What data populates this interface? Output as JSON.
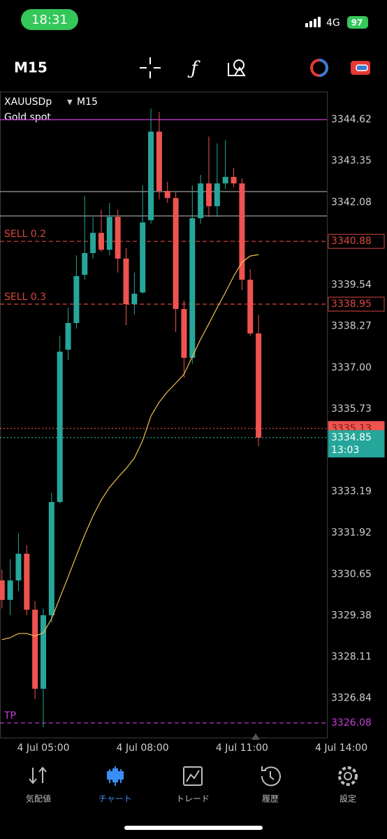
{
  "status_bar": {
    "time": "18:31",
    "network": "4G",
    "battery": "97"
  },
  "toolbar": {
    "timeframe": "M15"
  },
  "chart_data": {
    "type": "candlestick",
    "symbol": "XAUUSDp",
    "timeframe": "M15",
    "description": "Gold spot",
    "categories": [
      null,
      null,
      null,
      null,
      null,
      "4 Jul 05:00",
      null,
      null,
      null,
      null,
      null,
      null,
      null,
      null,
      null,
      null,
      null,
      "4 Jul 08:00",
      null,
      null,
      null,
      null,
      null,
      null,
      null,
      null,
      null,
      null,
      null,
      "4 Jul 11:00",
      null,
      null,
      null,
      null,
      null,
      null,
      null,
      null,
      null,
      null,
      null,
      "4 Jul 14:00"
    ],
    "open": [
      3330.46,
      3329.86,
      3330.46,
      3331.28,
      3329.56,
      3327.13,
      3329.39,
      3332.87,
      3337.55,
      3338.37,
      3339.85,
      3340.52,
      3341.14,
      3340.62,
      3341.63,
      3340.35,
      3338.95,
      3339.31,
      3341.53,
      3344.25,
      3342.43,
      3342.21,
      3338.8,
      3337.3,
      3341.59,
      3342.66,
      3341.96,
      3342.66,
      3342.86,
      3342.66,
      3339.7,
      3338.05,
      null,
      null,
      null,
      null,
      null,
      null,
      null,
      null,
      null,
      null
    ],
    "high": [
      3330.79,
      3331.11,
      3331.9,
      3331.54,
      3329.82,
      3329.6,
      3333.15,
      3337.98,
      3338.84,
      3340.45,
      3342.28,
      3341.63,
      3341.85,
      3342.06,
      3341.85,
      3340.67,
      3339.92,
      3342.6,
      3344.96,
      3344.86,
      3342.71,
      3342.39,
      3339.06,
      3342.6,
      3342.92,
      3344.1,
      3343.89,
      3344.0,
      3343.14,
      3342.82,
      3340.02,
      3338.63,
      null,
      null,
      null,
      null,
      null,
      null,
      null,
      null,
      null,
      null
    ],
    "low": [
      3329.6,
      3329.39,
      3330.14,
      3329.39,
      3326.81,
      3325.95,
      3329.17,
      3332.83,
      3337.23,
      3338.2,
      3339.7,
      3340.35,
      3340.56,
      3340.45,
      3339.92,
      3338.3,
      3338.63,
      3339.27,
      3341.42,
      3342.17,
      3342.06,
      3338.09,
      3336.69,
      3337.12,
      3341.42,
      3341.63,
      3341.63,
      3342.49,
      3342.54,
      3339.38,
      3337.98,
      3334.59,
      null,
      null,
      null,
      null,
      null,
      null,
      null,
      null,
      null,
      null
    ],
    "close": [
      3329.86,
      3330.46,
      3331.28,
      3329.56,
      3327.13,
      3329.39,
      3332.87,
      3337.49,
      3338.37,
      3339.81,
      3340.52,
      3341.14,
      3340.62,
      3341.63,
      3340.35,
      3338.95,
      3339.27,
      3341.46,
      3344.25,
      3342.43,
      3342.21,
      3338.8,
      3337.3,
      3341.59,
      3342.66,
      3341.96,
      3342.66,
      3342.86,
      3342.66,
      3339.7,
      3338.05,
      3334.85,
      null,
      null,
      null,
      null,
      null,
      null,
      null,
      null,
      null,
      null
    ],
    "up_color": "#26a69a",
    "down_color": "#ef5350",
    "moving_average": {
      "color": "#f2c14e",
      "values": [
        3328.64,
        3328.7,
        3328.83,
        3328.83,
        3328.75,
        3328.85,
        3329.28,
        3329.93,
        3330.57,
        3331.22,
        3331.86,
        3332.44,
        3332.93,
        3333.32,
        3333.62,
        3333.9,
        3334.22,
        3334.76,
        3335.51,
        3335.94,
        3336.26,
        3336.52,
        3336.8,
        3337.34,
        3337.87,
        3338.35,
        3338.84,
        3339.31,
        3339.81,
        3340.24,
        3340.43,
        3340.47,
        null,
        null,
        null,
        null,
        null,
        null,
        null,
        null,
        null,
        null
      ]
    },
    "ylim": [
      3325.63,
      3345.46
    ],
    "yticks": [
      3344.62,
      3343.35,
      3342.08,
      3339.54,
      3338.27,
      {
        "value": 3337,
        "label": "3337.00"
      },
      3335.73,
      3333.19,
      3331.92,
      3330.65,
      3329.38,
      3328.11,
      3326.84
    ],
    "grid": false,
    "levels": [
      {
        "value": 3344.62,
        "color": "#d63ae0",
        "style": "solid"
      },
      {
        "value": 3342.41,
        "color": "#9a9a9a",
        "style": "solid"
      },
      {
        "value": 3341.66,
        "color": "#9a9a9a",
        "style": "solid"
      },
      {
        "name": "SELL 0.2",
        "value": 3340.88,
        "color": "#d9473d",
        "style": "dashed",
        "label_style": "outline"
      },
      {
        "name": "SELL 0.3",
        "value": 3338.95,
        "color": "#d9473d",
        "style": "dashed",
        "label_style": "outline"
      },
      {
        "value": 3335.13,
        "color": "#ef5350",
        "style": "dotted",
        "label_style": "fill",
        "text_color": "#7a1a14"
      },
      {
        "value": 3334.85,
        "color": "#26a69a",
        "style": "dotted",
        "label_style": "fill",
        "text_color": "#ffffff",
        "timer": "13:03"
      },
      {
        "name": "TP",
        "value": 3326.08,
        "color": "#c23fd6",
        "style": "dashed",
        "label_style": "text"
      }
    ]
  },
  "tab_bar": {
    "items": [
      "気配値",
      "チャート",
      "トレード",
      "履歴",
      "設定"
    ],
    "active": 1
  }
}
